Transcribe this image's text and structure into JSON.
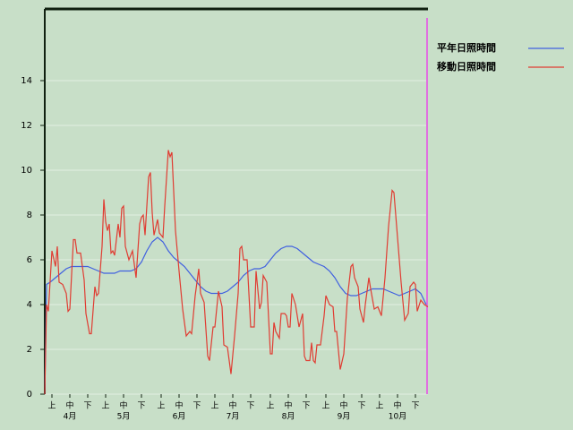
{
  "chart_data": {
    "type": "line",
    "xlim": [
      0,
      214
    ],
    "ylim": [
      0,
      17.2
    ],
    "yticks": [
      0,
      2,
      4,
      6,
      8,
      10,
      12,
      14
    ],
    "grid": true,
    "xticks": [
      {
        "value": 4,
        "label": "上"
      },
      {
        "value": 14,
        "label": "中"
      },
      {
        "value": 24,
        "label": "下"
      },
      {
        "value": 34,
        "label": "上"
      },
      {
        "value": 44,
        "label": "中"
      },
      {
        "value": 54,
        "label": "下"
      },
      {
        "value": 65,
        "label": "上"
      },
      {
        "value": 75,
        "label": "中"
      },
      {
        "value": 85,
        "label": "下"
      },
      {
        "value": 95,
        "label": "上"
      },
      {
        "value": 105,
        "label": "中"
      },
      {
        "value": 115,
        "label": "下"
      },
      {
        "value": 126,
        "label": "上"
      },
      {
        "value": 136,
        "label": "中"
      },
      {
        "value": 146,
        "label": "下"
      },
      {
        "value": 157,
        "label": "上"
      },
      {
        "value": 167,
        "label": "中"
      },
      {
        "value": 177,
        "label": "下"
      },
      {
        "value": 187,
        "label": "上"
      },
      {
        "value": 197,
        "label": "中"
      },
      {
        "value": 207,
        "label": "下"
      }
    ],
    "month_ticks": [
      {
        "value": 14,
        "label": "4月"
      },
      {
        "value": 44,
        "label": "5月"
      },
      {
        "value": 75,
        "label": "6月"
      },
      {
        "value": 105,
        "label": "7月"
      },
      {
        "value": 136,
        "label": "8月"
      },
      {
        "value": 167,
        "label": "9月"
      },
      {
        "value": 197,
        "label": "10月"
      }
    ],
    "series": [
      {
        "name": "平年日照時間",
        "color": "#4060e0",
        "x": [
          0,
          1,
          3,
          6,
          9,
          12,
          15,
          18,
          21,
          24,
          27,
          30,
          33,
          36,
          39,
          42,
          45,
          48,
          51,
          54,
          57,
          60,
          63,
          66,
          69,
          72,
          75,
          78,
          81,
          84,
          87,
          90,
          93,
          96,
          99,
          102,
          105,
          108,
          111,
          114,
          117,
          120,
          123,
          126,
          129,
          132,
          135,
          138,
          141,
          144,
          147,
          150,
          153,
          156,
          159,
          162,
          165,
          168,
          171,
          174,
          177,
          180,
          183,
          186,
          189,
          192,
          195,
          198,
          201,
          204,
          207,
          210,
          213
        ],
        "values": [
          0,
          4.9,
          5.0,
          5.2,
          5.4,
          5.6,
          5.7,
          5.7,
          5.7,
          5.7,
          5.6,
          5.5,
          5.4,
          5.4,
          5.4,
          5.5,
          5.5,
          5.5,
          5.6,
          5.9,
          6.4,
          6.8,
          7.0,
          6.8,
          6.4,
          6.1,
          5.9,
          5.7,
          5.4,
          5.1,
          4.8,
          4.6,
          4.5,
          4.5,
          4.5,
          4.6,
          4.8,
          5.0,
          5.3,
          5.5,
          5.6,
          5.6,
          5.7,
          6.0,
          6.3,
          6.5,
          6.6,
          6.6,
          6.5,
          6.3,
          6.1,
          5.9,
          5.8,
          5.7,
          5.5,
          5.2,
          4.8,
          4.5,
          4.4,
          4.4,
          4.5,
          4.6,
          4.7,
          4.7,
          4.7,
          4.6,
          4.5,
          4.4,
          4.5,
          4.6,
          4.7,
          4.5,
          4.0
        ]
      },
      {
        "name": "移動日照時間",
        "color": "#e03c32",
        "x": [
          0,
          1,
          2,
          4,
          6,
          7,
          8,
          10,
          12,
          13,
          14,
          16,
          17,
          18,
          20,
          22,
          23,
          25,
          26,
          28,
          29,
          30,
          32,
          33,
          34,
          35,
          36,
          37,
          38,
          39,
          41,
          42,
          43,
          44,
          45,
          47,
          49,
          51,
          53,
          54,
          55,
          56,
          58,
          59,
          60,
          61,
          63,
          64,
          66,
          67,
          69,
          70,
          71,
          73,
          75,
          77,
          79,
          81,
          82,
          84,
          86,
          87,
          88,
          89,
          91,
          92,
          94,
          95,
          97,
          99,
          100,
          102,
          103,
          104,
          106,
          108,
          109,
          110,
          111,
          113,
          115,
          117,
          118,
          120,
          121,
          122,
          124,
          126,
          127,
          128,
          129,
          131,
          132,
          134,
          135,
          136,
          137,
          138,
          140,
          142,
          144,
          145,
          146,
          148,
          149,
          150,
          151,
          152,
          154,
          156,
          157,
          159,
          161,
          162,
          163,
          165,
          167,
          169,
          171,
          172,
          173,
          175,
          176,
          178,
          179,
          181,
          182,
          184,
          186,
          188,
          190,
          192,
          194,
          195,
          197,
          199,
          201,
          203,
          204,
          206,
          207,
          208,
          210,
          212,
          214
        ],
        "values": [
          0,
          4.0,
          3.7,
          6.4,
          5.7,
          6.6,
          5.0,
          4.9,
          4.5,
          3.7,
          3.8,
          6.9,
          6.9,
          6.3,
          6.3,
          5.1,
          3.6,
          2.7,
          2.7,
          4.8,
          4.4,
          4.5,
          6.6,
          8.7,
          7.7,
          7.3,
          7.6,
          6.3,
          6.4,
          6.2,
          7.6,
          7.0,
          8.3,
          8.4,
          6.6,
          6.0,
          6.4,
          5.2,
          7.6,
          7.9,
          8.0,
          7.1,
          9.7,
          9.9,
          8.1,
          7.1,
          7.8,
          7.2,
          7.0,
          8.4,
          10.9,
          10.6,
          10.8,
          7.3,
          5.5,
          3.8,
          2.6,
          2.8,
          2.7,
          4.4,
          5.6,
          4.5,
          4.3,
          4.1,
          1.7,
          1.5,
          3.0,
          3.0,
          4.6,
          3.9,
          2.2,
          2.1,
          1.5,
          0.9,
          2.6,
          4.5,
          6.5,
          6.6,
          6.0,
          6.0,
          3.0,
          3.0,
          5.5,
          3.8,
          4.1,
          5.3,
          5.0,
          1.8,
          1.8,
          3.2,
          2.8,
          2.5,
          3.6,
          3.6,
          3.5,
          3.0,
          3.0,
          4.5,
          4.0,
          3.0,
          3.6,
          1.7,
          1.5,
          1.5,
          2.3,
          1.5,
          1.4,
          2.2,
          2.2,
          3.5,
          4.4,
          4.0,
          3.9,
          2.8,
          2.8,
          1.1,
          1.8,
          4.3,
          5.7,
          5.8,
          5.2,
          4.8,
          3.8,
          3.2,
          4.0,
          5.2,
          4.7,
          3.8,
          3.9,
          3.5,
          5.2,
          7.5,
          9.1,
          9.0,
          7.0,
          5.0,
          3.3,
          3.6,
          4.8,
          5.0,
          4.9,
          3.7,
          4.2,
          4.0,
          3.9
        ]
      }
    ]
  }
}
